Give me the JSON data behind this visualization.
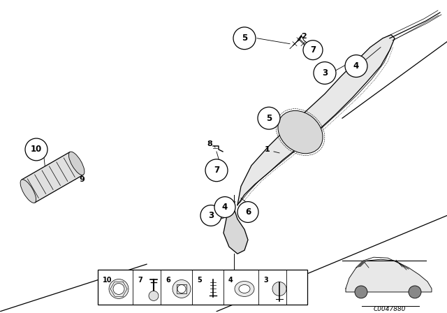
{
  "bg_color": "#ffffff",
  "figure_width": 6.4,
  "figure_height": 4.48,
  "dpi": 100,
  "part_number_code": "C0047880",
  "line_color": "#000000"
}
